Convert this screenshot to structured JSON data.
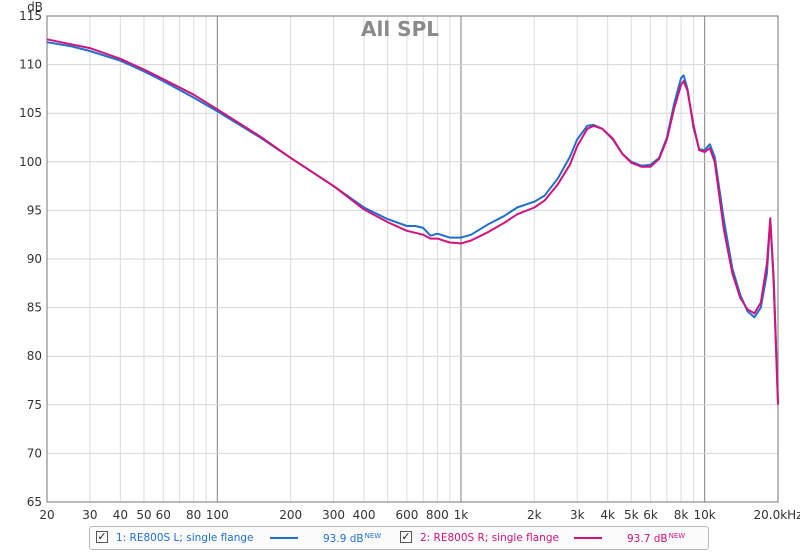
{
  "chart_data": {
    "type": "line",
    "title": "All SPL",
    "ylabel": "dB",
    "x_scale": "log",
    "xlim": [
      20,
      20000
    ],
    "ylim": [
      65,
      115
    ],
    "y_ticks": [
      65,
      70,
      75,
      80,
      85,
      90,
      95,
      100,
      105,
      110,
      115
    ],
    "x_ticks": [
      {
        "v": 20,
        "label": "20"
      },
      {
        "v": 30,
        "label": "30"
      },
      {
        "v": 40,
        "label": "40"
      },
      {
        "v": 50,
        "label": "50"
      },
      {
        "v": 60,
        "label": "60"
      },
      {
        "v": 80,
        "label": "80"
      },
      {
        "v": 100,
        "label": "100"
      },
      {
        "v": 200,
        "label": "200"
      },
      {
        "v": 300,
        "label": "300"
      },
      {
        "v": 400,
        "label": "400"
      },
      {
        "v": 600,
        "label": "600"
      },
      {
        "v": 800,
        "label": "800"
      },
      {
        "v": 1000,
        "label": "1k"
      },
      {
        "v": 2000,
        "label": "2k"
      },
      {
        "v": 3000,
        "label": "3k"
      },
      {
        "v": 4000,
        "label": "4k"
      },
      {
        "v": 5000,
        "label": "5k"
      },
      {
        "v": 6000,
        "label": "6k"
      },
      {
        "v": 8000,
        "label": "8k"
      },
      {
        "v": 10000,
        "label": "10k"
      },
      {
        "v": 20000,
        "label": "20.0kHz"
      }
    ],
    "grid": true,
    "legend_position": "bottom",
    "series": [
      {
        "name": "1: RE800S L; single flange",
        "color": "#1f6fd1",
        "avg_label": "93.9 dB",
        "badge": "NEW",
        "points": [
          [
            20,
            112.3
          ],
          [
            25,
            111.9
          ],
          [
            30,
            111.4
          ],
          [
            40,
            110.4
          ],
          [
            50,
            109.3
          ],
          [
            60,
            108.3
          ],
          [
            80,
            106.6
          ],
          [
            100,
            105.2
          ],
          [
            150,
            102.5
          ],
          [
            200,
            100.4
          ],
          [
            300,
            97.5
          ],
          [
            400,
            95.3
          ],
          [
            500,
            94.1
          ],
          [
            600,
            93.4
          ],
          [
            650,
            93.4
          ],
          [
            700,
            93.2
          ],
          [
            750,
            92.4
          ],
          [
            800,
            92.6
          ],
          [
            900,
            92.2
          ],
          [
            1000,
            92.2
          ],
          [
            1100,
            92.5
          ],
          [
            1300,
            93.6
          ],
          [
            1500,
            94.4
          ],
          [
            1700,
            95.3
          ],
          [
            2000,
            95.9
          ],
          [
            2200,
            96.5
          ],
          [
            2500,
            98.3
          ],
          [
            2800,
            100.5
          ],
          [
            3000,
            102.3
          ],
          [
            3300,
            103.7
          ],
          [
            3500,
            103.8
          ],
          [
            3800,
            103.4
          ],
          [
            4200,
            102.3
          ],
          [
            4600,
            100.8
          ],
          [
            5000,
            100.0
          ],
          [
            5500,
            99.6
          ],
          [
            6000,
            99.7
          ],
          [
            6500,
            100.4
          ],
          [
            7000,
            102.5
          ],
          [
            7500,
            106.0
          ],
          [
            8000,
            108.6
          ],
          [
            8200,
            108.9
          ],
          [
            8500,
            107.5
          ],
          [
            9000,
            103.5
          ],
          [
            9500,
            101.3
          ],
          [
            10000,
            101.2
          ],
          [
            10500,
            101.8
          ],
          [
            11000,
            100.5
          ],
          [
            12000,
            94.0
          ],
          [
            13000,
            89.0
          ],
          [
            14000,
            86.3
          ],
          [
            15000,
            84.6
          ],
          [
            16000,
            84.0
          ],
          [
            17000,
            85.0
          ],
          [
            18000,
            88.5
          ],
          [
            18600,
            94.0
          ],
          [
            19200,
            88.0
          ],
          [
            20000,
            75.2
          ]
        ]
      },
      {
        "name": "2: RE800S R; single flange",
        "color": "#d4127b",
        "avg_label": "93.7 dB",
        "badge": "NEW",
        "points": [
          [
            20,
            112.6
          ],
          [
            25,
            112.1
          ],
          [
            30,
            111.7
          ],
          [
            40,
            110.6
          ],
          [
            50,
            109.5
          ],
          [
            60,
            108.5
          ],
          [
            80,
            106.9
          ],
          [
            100,
            105.4
          ],
          [
            150,
            102.6
          ],
          [
            200,
            100.4
          ],
          [
            300,
            97.5
          ],
          [
            400,
            95.1
          ],
          [
            500,
            93.8
          ],
          [
            600,
            92.9
          ],
          [
            700,
            92.5
          ],
          [
            750,
            92.1
          ],
          [
            800,
            92.1
          ],
          [
            900,
            91.7
          ],
          [
            1000,
            91.6
          ],
          [
            1100,
            91.9
          ],
          [
            1300,
            92.8
          ],
          [
            1500,
            93.7
          ],
          [
            1700,
            94.6
          ],
          [
            2000,
            95.3
          ],
          [
            2200,
            96.0
          ],
          [
            2500,
            97.7
          ],
          [
            2800,
            99.7
          ],
          [
            3000,
            101.6
          ],
          [
            3300,
            103.4
          ],
          [
            3500,
            103.7
          ],
          [
            3800,
            103.4
          ],
          [
            4200,
            102.4
          ],
          [
            4600,
            100.8
          ],
          [
            5000,
            99.9
          ],
          [
            5500,
            99.5
          ],
          [
            6000,
            99.5
          ],
          [
            6500,
            100.3
          ],
          [
            7000,
            102.3
          ],
          [
            7500,
            105.5
          ],
          [
            8000,
            107.9
          ],
          [
            8200,
            108.3
          ],
          [
            8500,
            107.3
          ],
          [
            9000,
            103.8
          ],
          [
            9500,
            101.2
          ],
          [
            10000,
            101.0
          ],
          [
            10500,
            101.4
          ],
          [
            11000,
            100.0
          ],
          [
            12000,
            93.0
          ],
          [
            13000,
            88.5
          ],
          [
            14000,
            86.0
          ],
          [
            15000,
            84.8
          ],
          [
            16000,
            84.4
          ],
          [
            17000,
            85.5
          ],
          [
            18000,
            89.5
          ],
          [
            18600,
            94.2
          ],
          [
            19200,
            87.5
          ],
          [
            20000,
            75.0
          ]
        ]
      }
    ]
  }
}
